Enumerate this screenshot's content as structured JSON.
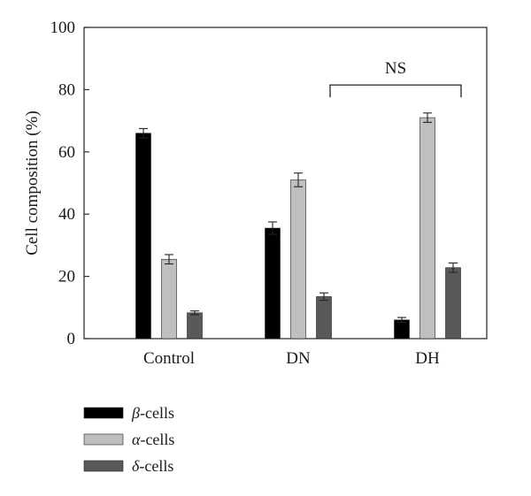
{
  "chart_data": {
    "type": "bar",
    "title": "",
    "xlabel": "",
    "ylabel": "Cell composition (%)",
    "ylim": [
      0,
      100
    ],
    "yticks": [
      0,
      20,
      40,
      60,
      80,
      100
    ],
    "categories": [
      "Control",
      "DN",
      "DH"
    ],
    "series": [
      {
        "name": "β-cells",
        "greek": "β",
        "suffix": "-cells",
        "color": "#000000",
        "values": [
          66,
          35.5,
          6
        ],
        "errors": [
          1.5,
          2,
          0.8
        ]
      },
      {
        "name": "α-cells",
        "greek": "α",
        "suffix": "-cells",
        "color": "#bfbfbf",
        "values": [
          25.5,
          51,
          71
        ],
        "errors": [
          1.5,
          2.2,
          1.5
        ]
      },
      {
        "name": "δ-cells",
        "greek": "δ",
        "suffix": "-cells",
        "color": "#595959",
        "values": [
          8.3,
          13.5,
          22.8
        ],
        "errors": [
          0.6,
          1.2,
          1.5
        ]
      }
    ],
    "annotations": [
      {
        "text": "NS",
        "from_category": "DN",
        "to_category": "DH",
        "y": 81.5
      }
    ],
    "legend_position": "bottom-left",
    "grid": false
  }
}
